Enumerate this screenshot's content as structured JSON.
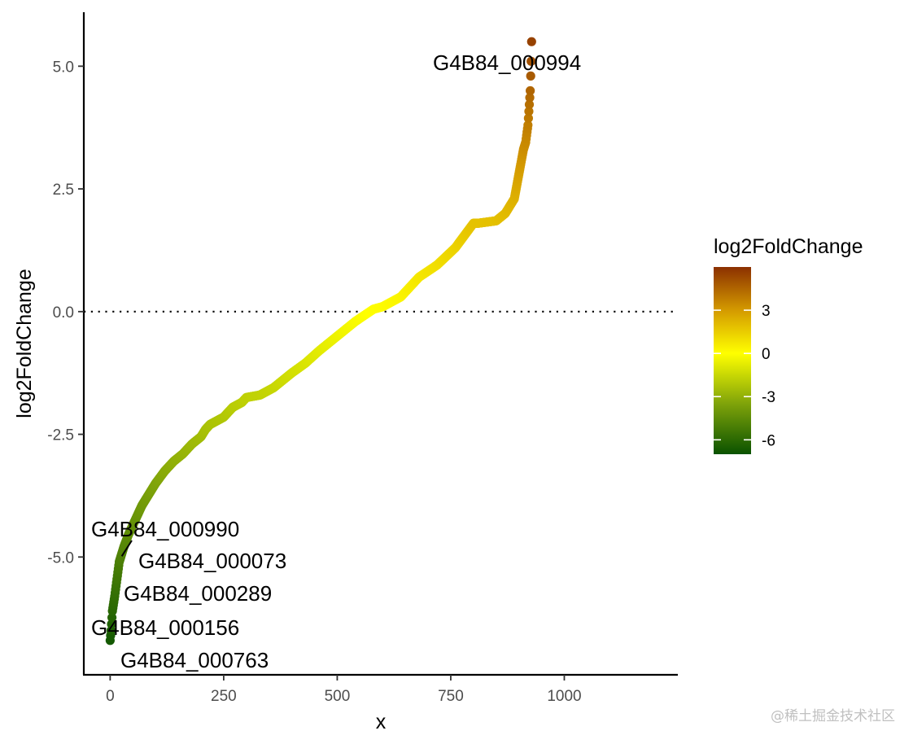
{
  "chart_data": {
    "type": "scatter",
    "title": "",
    "xlabel": "x",
    "ylabel": "log2FoldChange",
    "xlim": [
      -58,
      1250
    ],
    "ylim": [
      -7.4,
      6.1
    ],
    "x_ticks": [
      0,
      250,
      500,
      750,
      1000
    ],
    "x_tick_labels": [
      "0",
      "250",
      "500",
      "750",
      "1000"
    ],
    "y_ticks": [
      -5,
      -2.5,
      0,
      2.5,
      5
    ],
    "y_tick_labels": [
      "-5.0",
      "-2.5",
      "0.0",
      "2.5",
      "5.0"
    ],
    "grid": false,
    "reference_line": {
      "y": 0,
      "style": "dotted"
    },
    "curve": {
      "n_points": 929,
      "x": [
        0,
        2,
        5,
        10,
        15,
        20,
        25,
        30,
        40,
        50,
        60,
        70,
        80,
        90,
        100,
        120,
        140,
        160,
        180,
        200,
        210,
        220,
        230,
        240,
        250,
        270,
        290,
        300,
        330,
        360,
        400,
        430,
        460,
        500,
        540,
        580,
        600,
        640,
        680,
        720,
        760,
        800,
        810,
        850,
        870,
        890,
        900,
        910,
        915,
        920,
        925,
        927,
        928
      ],
      "y": [
        -6.7,
        -6.5,
        -6.1,
        -5.8,
        -5.45,
        -5.1,
        -4.95,
        -4.8,
        -4.55,
        -4.35,
        -4.15,
        -3.95,
        -3.8,
        -3.65,
        -3.5,
        -3.25,
        -3.05,
        -2.9,
        -2.7,
        -2.55,
        -2.4,
        -2.3,
        -2.25,
        -2.2,
        -2.15,
        -1.95,
        -1.85,
        -1.75,
        -1.7,
        -1.55,
        -1.25,
        -1.05,
        -0.8,
        -0.5,
        -0.2,
        0.05,
        0.1,
        0.3,
        0.7,
        0.95,
        1.3,
        1.8,
        1.8,
        1.85,
        2.0,
        2.3,
        2.8,
        3.3,
        3.45,
        3.8,
        4.5,
        5.1,
        5.5
      ]
    },
    "labeled_points": [
      {
        "label": "G4B84_000994",
        "x": 928,
        "y": 5.5
      },
      {
        "label": "G4B84_000990",
        "x": 22,
        "y": -4.95
      },
      {
        "label": "G4B84_000073",
        "x": 16,
        "y": -5.1
      },
      {
        "label": "G4B84_000289",
        "x": 10,
        "y": -5.8
      },
      {
        "label": "G4B84_000156",
        "x": 3,
        "y": -6.1
      },
      {
        "label": "G4B84_000763",
        "x": 0,
        "y": -6.7
      }
    ],
    "color_scale": {
      "title": "log2FoldChange",
      "colors": [
        "#0a5200",
        "#7fa30a",
        "#ffff00",
        "#d49a00",
        "#8b3000"
      ],
      "stops": [
        -7,
        -3.5,
        0,
        3,
        6
      ],
      "ticks": [
        3,
        0,
        -3,
        -6
      ],
      "tick_labels": [
        "3",
        "0",
        "-3",
        "-6"
      ],
      "range": [
        -7,
        6
      ],
      "legend_position": "right"
    }
  },
  "watermark": "@稀土掘金技术社区"
}
